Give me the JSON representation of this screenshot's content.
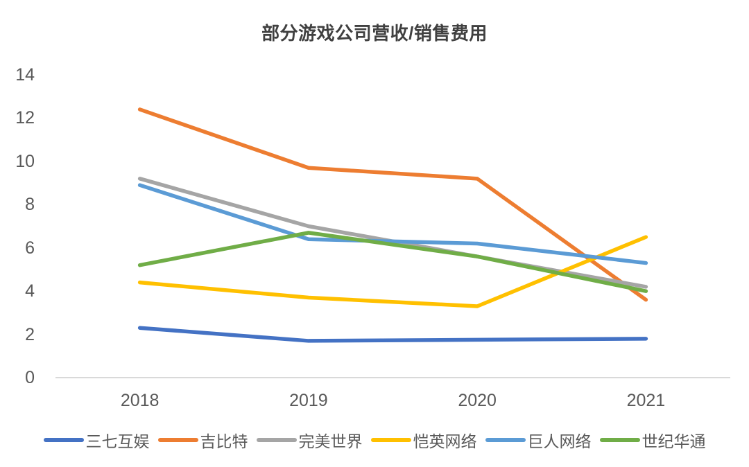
{
  "chart_data": {
    "type": "line",
    "title": "部分游戏公司营收/销售费用",
    "categories": [
      "2018",
      "2019",
      "2020",
      "2021"
    ],
    "series": [
      {
        "name": "三七互娱",
        "color": "#4472C4",
        "values": [
          2.3,
          1.7,
          1.75,
          1.8
        ]
      },
      {
        "name": "吉比特",
        "color": "#ED7D31",
        "values": [
          12.4,
          9.7,
          9.2,
          3.6
        ]
      },
      {
        "name": "完美世界",
        "color": "#A5A5A5",
        "values": [
          9.2,
          7.0,
          5.6,
          4.2
        ]
      },
      {
        "name": "恺英网络",
        "color": "#FFC000",
        "values": [
          4.4,
          3.7,
          3.3,
          6.5
        ]
      },
      {
        "name": "巨人网络",
        "color": "#5B9BD5",
        "values": [
          8.9,
          6.4,
          6.2,
          5.3
        ]
      },
      {
        "name": "世纪华通",
        "color": "#70AD47",
        "values": [
          5.2,
          6.7,
          5.6,
          4.0
        ]
      }
    ],
    "xlabel": "",
    "ylabel": "",
    "ylim": [
      0,
      14
    ],
    "yticks": [
      0,
      2,
      4,
      6,
      8,
      10,
      12,
      14
    ],
    "grid": false,
    "legend_position": "bottom",
    "axis_color": "#D9D9D9",
    "label_color": "#595959",
    "title_color": "#404040"
  }
}
